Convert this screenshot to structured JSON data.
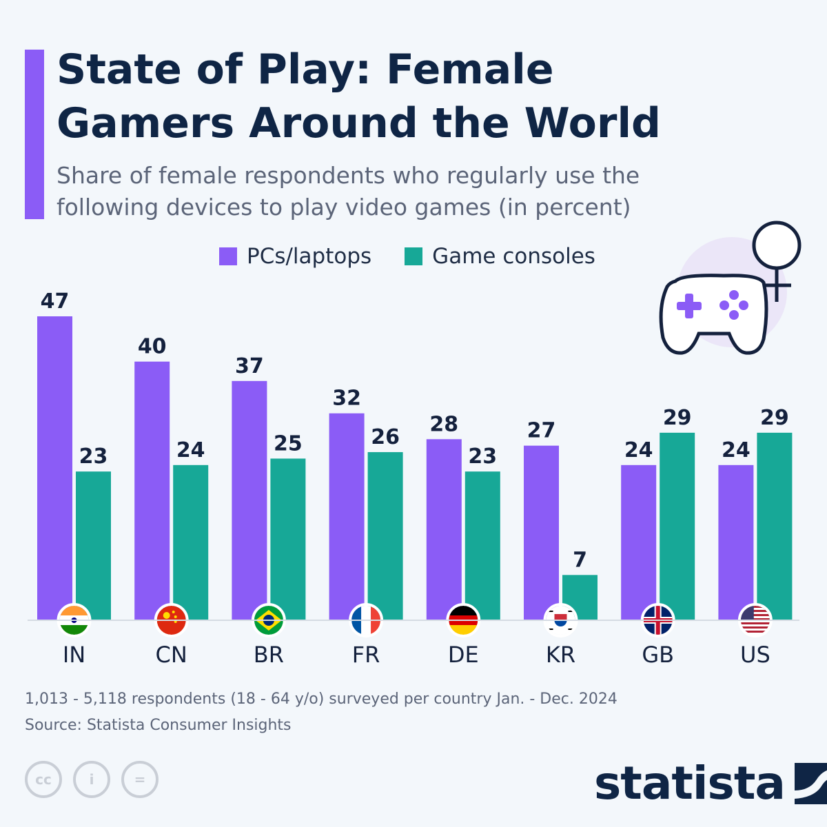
{
  "header": {
    "title": "State of Play: Female Gamers Around the World",
    "subtitle": "Share of female respondents who regularly use the following devices to play video games (in percent)"
  },
  "legend": {
    "items": [
      {
        "label": "PCs/laptops",
        "color": "#8b5cf6"
      },
      {
        "label": "Game consoles",
        "color": "#17a897"
      }
    ]
  },
  "chart_data": {
    "type": "bar",
    "title": "State of Play: Female Gamers Around the World",
    "subtitle": "Share of female respondents who regularly use the following devices to play video games (in percent)",
    "categories": [
      "IN",
      "CN",
      "BR",
      "FR",
      "DE",
      "KR",
      "GB",
      "US"
    ],
    "series": [
      {
        "name": "PCs/laptops",
        "color": "#8b5cf6",
        "values": [
          47,
          40,
          37,
          32,
          28,
          27,
          24,
          24
        ]
      },
      {
        "name": "Game consoles",
        "color": "#17a897",
        "values": [
          23,
          24,
          25,
          26,
          23,
          7,
          29,
          29
        ]
      }
    ],
    "ylim": [
      0,
      47
    ],
    "grid": false,
    "legend_position": "top",
    "flag_icons": [
      "india-flag-icon",
      "china-flag-icon",
      "brazil-flag-icon",
      "france-flag-icon",
      "germany-flag-icon",
      "south-korea-flag-icon",
      "uk-flag-icon",
      "us-flag-icon"
    ]
  },
  "footer": {
    "note": "1,013 - 5,118 respondents (18 - 64 y/o) surveyed per country Jan. - Dec. 2024",
    "source": "Source: Statista Consumer Insights",
    "brand": "statista",
    "cc_labels": [
      "cc",
      "i",
      "="
    ]
  }
}
